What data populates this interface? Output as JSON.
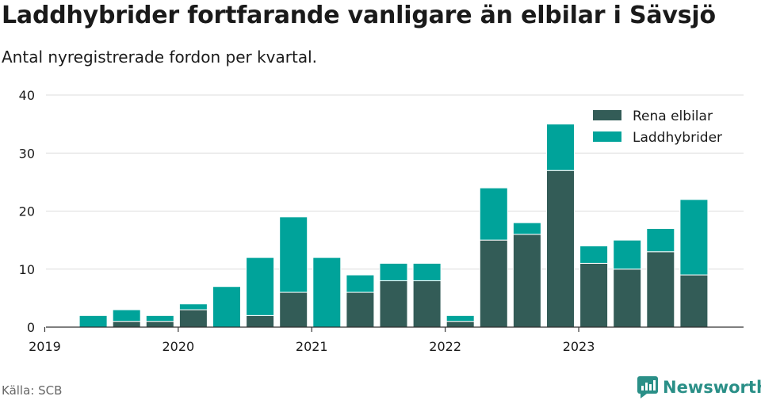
{
  "header": {
    "title": "Laddhybrider fortfarande vanligare än elbilar i Sävsjö",
    "subtitle": "Antal nyregistrerade fordon per kvartal."
  },
  "footer": {
    "source": "Källa: SCB",
    "brand": "Newsworthy"
  },
  "colors": {
    "rena_elbilar": "#335c57",
    "laddhybrider": "#00a39a",
    "brand": "#2a8f87"
  },
  "chart_data": {
    "type": "bar",
    "stacked": true,
    "title": "Laddhybrider fortfarande vanligare än elbilar i Sävsjö",
    "subtitle": "Antal nyregistrerade fordon per kvartal.",
    "categories": [
      "2019-Q1",
      "2019-Q2",
      "2019-Q3",
      "2019-Q4",
      "2020-Q1",
      "2020-Q2",
      "2020-Q3",
      "2020-Q4",
      "2021-Q1",
      "2021-Q2",
      "2021-Q3",
      "2021-Q4",
      "2022-Q1",
      "2022-Q2",
      "2022-Q3",
      "2022-Q4",
      "2023-Q1",
      "2023-Q2",
      "2023-Q3",
      "2023-Q4"
    ],
    "series": [
      {
        "name": "Rena elbilar",
        "values": [
          0,
          0,
          1,
          1,
          3,
          0,
          2,
          6,
          0,
          6,
          8,
          8,
          1,
          15,
          16,
          27,
          11,
          10,
          13,
          9
        ]
      },
      {
        "name": "Laddhybrider",
        "values": [
          0,
          2,
          2,
          1,
          1,
          7,
          10,
          13,
          12,
          3,
          3,
          3,
          1,
          9,
          2,
          8,
          3,
          5,
          4,
          13
        ]
      }
    ],
    "x_tick_labels": [
      "2019",
      "2020",
      "2021",
      "2022",
      "2023"
    ],
    "y_tick_labels": [
      "0",
      "10",
      "20",
      "30",
      "40"
    ],
    "ylim": [
      0,
      40
    ],
    "grid": true,
    "legend_position": "top-right"
  }
}
